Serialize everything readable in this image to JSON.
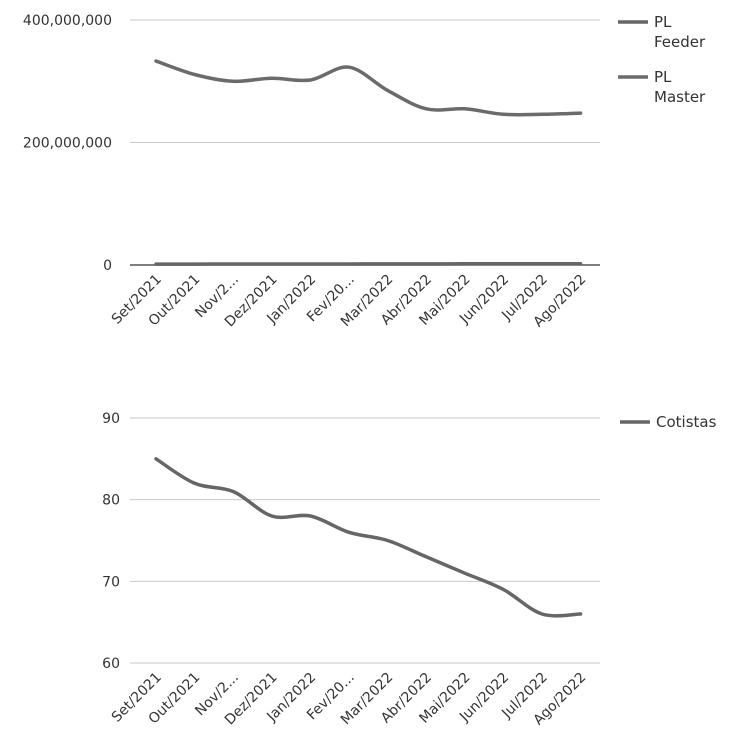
{
  "chart_data": [
    {
      "type": "line",
      "categories": [
        "Set/2021",
        "Out/2021",
        "Nov/2...",
        "Dez/2021",
        "Jan/2022",
        "Fev/20...",
        "Mar/2022",
        "Abr/2022",
        "Mai/2022",
        "Jun/2022",
        "Jul/2022",
        "Ago/2022"
      ],
      "ylim": [
        0,
        400000000
      ],
      "yticks": [
        "0",
        "200,000,000",
        "400,000,000"
      ],
      "ytick_values": [
        0,
        200000000,
        400000000
      ],
      "grid": true,
      "legend_position": "right",
      "series": [
        {
          "name": "PL Feeder",
          "color": "#666666",
          "values": [
            1500000,
            1500000,
            1600000,
            1600000,
            1700000,
            1700000,
            1800000,
            1800000,
            1900000,
            1900000,
            2000000,
            2000000
          ]
        },
        {
          "name": "PL Master",
          "color": "#6b6b6b",
          "values": [
            333000000,
            311000000,
            300000000,
            305000000,
            302000000,
            323000000,
            285000000,
            255000000,
            255000000,
            246000000,
            246000000,
            248000000
          ]
        }
      ],
      "legend_lines": [
        [
          "PL",
          "Feeder"
        ],
        [
          "PL",
          "Master"
        ]
      ]
    },
    {
      "type": "line",
      "categories": [
        "Set/2021",
        "Out/2021",
        "Nov/2...",
        "Dez/2021",
        "Jan/2022",
        "Fev/20...",
        "Mar/2022",
        "Abr/2022",
        "Mai/2022",
        "Jun/2022",
        "Jul/2022",
        "Ago/2022"
      ],
      "ylim": [
        60,
        90
      ],
      "yticks": [
        "60",
        "70",
        "80",
        "90"
      ],
      "ytick_values": [
        60,
        70,
        80,
        90
      ],
      "grid": true,
      "legend_position": "right",
      "series": [
        {
          "name": "Cotistas",
          "color": "#666666",
          "values": [
            85,
            82,
            81,
            78,
            78,
            76,
            75,
            73,
            71,
            69,
            66,
            66
          ]
        }
      ],
      "legend_lines": [
        [
          "Cotistas"
        ]
      ]
    }
  ]
}
